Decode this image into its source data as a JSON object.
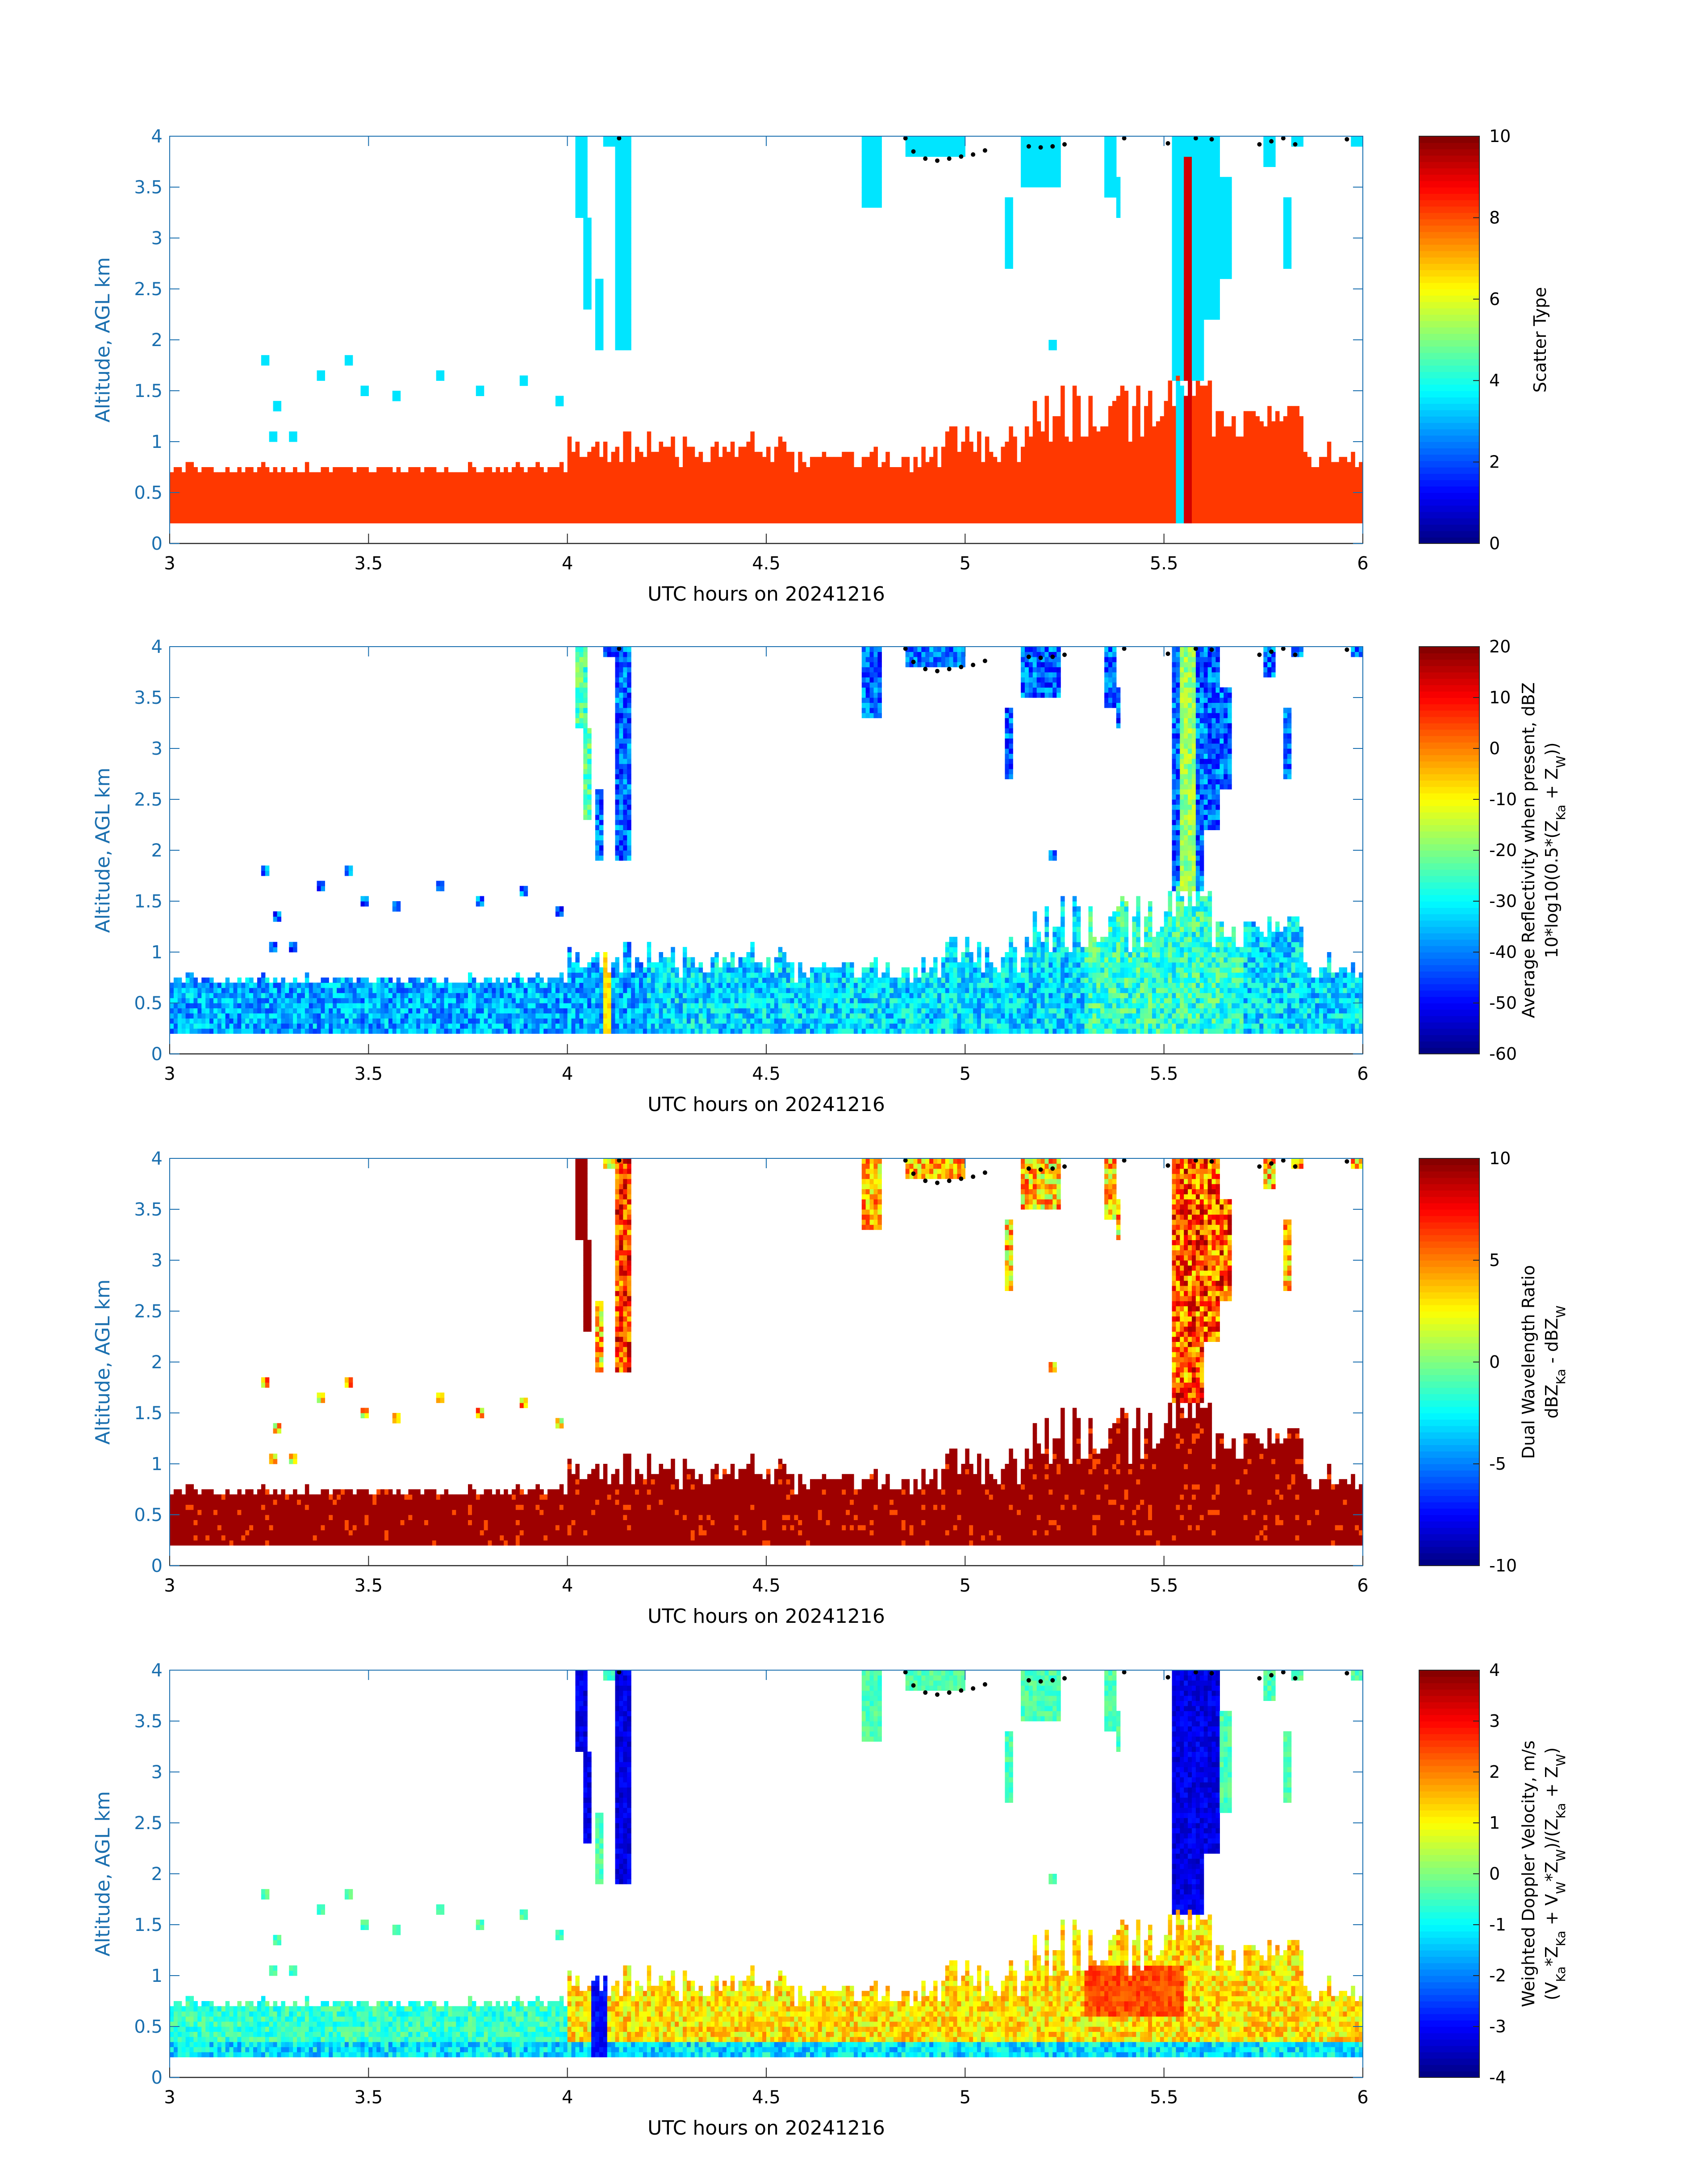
{
  "chart_data": [
    {
      "type": "heatmap",
      "xlabel": "UTC hours on 20241216",
      "ylabel": "Altitude, AGL km",
      "xlim": [
        3,
        6
      ],
      "ylim": [
        0,
        4
      ],
      "xticks": [
        "3",
        "3.5",
        "4",
        "4.5",
        "5",
        "5.5",
        "6"
      ],
      "yticks": [
        "0",
        "0.5",
        "1",
        "1.5",
        "2",
        "2.5",
        "3",
        "3.5",
        "4"
      ],
      "colorbar": {
        "label_lines": [
          "Scatter Type"
        ],
        "range": [
          0,
          10
        ],
        "ticks": [
          "0",
          "2",
          "4",
          "6",
          "8",
          "10"
        ]
      },
      "cloud_top": {
        "present": true
      },
      "field": "scatter"
    },
    {
      "type": "heatmap",
      "xlabel": "UTC hours on 20241216",
      "ylabel": "Altitude, AGL km",
      "xlim": [
        3,
        6
      ],
      "ylim": [
        0,
        4
      ],
      "xticks": [
        "3",
        "3.5",
        "4",
        "4.5",
        "5",
        "5.5",
        "6"
      ],
      "yticks": [
        "0",
        "0.5",
        "1",
        "1.5",
        "2",
        "2.5",
        "3",
        "3.5",
        "4"
      ],
      "colorbar": {
        "label_lines": [
          "Average Reflectivity when present, dBZ",
          "10*log10(0.5*(Z_Ka + Z_W))"
        ],
        "range": [
          -60,
          20
        ],
        "ticks": [
          "-60",
          "-50",
          "-40",
          "-30",
          "-20",
          "-10",
          "0",
          "10",
          "20"
        ]
      },
      "cloud_top": {
        "present": true
      },
      "field": "reflectivity"
    },
    {
      "type": "heatmap",
      "xlabel": "UTC hours on 20241216",
      "ylabel": "Altitude, AGL km",
      "xlim": [
        3,
        6
      ],
      "ylim": [
        0,
        4
      ],
      "xticks": [
        "3",
        "3.5",
        "4",
        "4.5",
        "5",
        "5.5",
        "6"
      ],
      "yticks": [
        "0",
        "0.5",
        "1",
        "1.5",
        "2",
        "2.5",
        "3",
        "3.5",
        "4"
      ],
      "colorbar": {
        "label_lines": [
          "Dual Wavelength Ratio",
          "dBZ_Ka - dBZ_W"
        ],
        "range": [
          -10,
          10
        ],
        "ticks": [
          "-10",
          "-5",
          "0",
          "5",
          "10"
        ]
      },
      "cloud_top": {
        "present": true
      },
      "field": "dwr"
    },
    {
      "type": "heatmap",
      "xlabel": "UTC hours on 20241216",
      "ylabel": "Altitude, AGL km",
      "xlim": [
        3,
        6
      ],
      "ylim": [
        0,
        4
      ],
      "xticks": [
        "3",
        "3.5",
        "4",
        "4.5",
        "5",
        "5.5",
        "6"
      ],
      "yticks": [
        "0",
        "0.5",
        "1",
        "1.5",
        "2",
        "2.5",
        "3",
        "3.5",
        "4"
      ],
      "colorbar": {
        "label_lines": [
          "Weighted Doppler Velocity, m/s",
          "(V_Ka*Z_Ka + V_W*Z_W)/(Z_Ka + Z_W)"
        ],
        "range": [
          -4,
          4
        ],
        "ticks": [
          "-4",
          "-3",
          "-2",
          "-1",
          "0",
          "1",
          "2",
          "3",
          "4"
        ]
      },
      "cloud_top": {
        "present": true
      },
      "field": "velocity"
    }
  ]
}
